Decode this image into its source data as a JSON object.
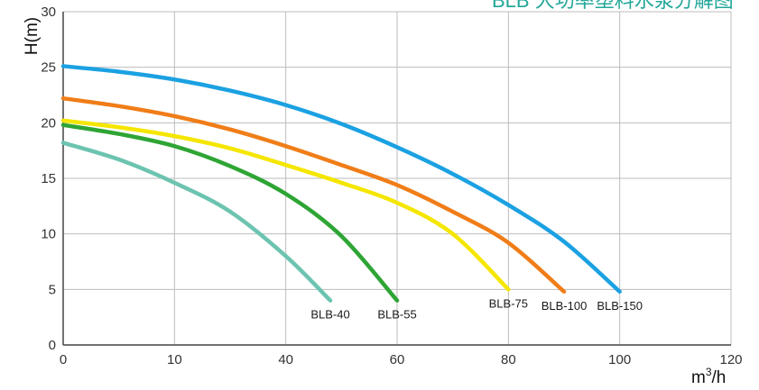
{
  "chart_data": {
    "type": "line",
    "title": "BLB 大功率塑料水泵分解图",
    "xlabel": "m³/h",
    "xlabel_base": "m",
    "xlabel_sup": "3",
    "xlabel_tail": "/h",
    "ylabel": "H(m)",
    "xlim": [
      0,
      120
    ],
    "ylim": [
      0,
      30
    ],
    "xticks": [
      "0",
      "10",
      "40",
      "60",
      "80",
      "100",
      "120"
    ],
    "yticks": [
      "0",
      "5",
      "10",
      "15",
      "20",
      "25",
      "30"
    ],
    "grid": true,
    "legend": "labels at curve ends",
    "series": [
      {
        "name": "BLB-150",
        "color": "#1ba1e2",
        "x": [
          0,
          10,
          20,
          30,
          40,
          50,
          60,
          70,
          80,
          90,
          100
        ],
        "y": [
          25.1,
          24.6,
          23.9,
          22.9,
          21.6,
          19.9,
          17.8,
          15.4,
          12.6,
          9.3,
          4.8
        ]
      },
      {
        "name": "BLB-100",
        "color": "#f07d18",
        "x": [
          0,
          10,
          20,
          30,
          40,
          50,
          60,
          70,
          80,
          90
        ],
        "y": [
          22.2,
          21.5,
          20.6,
          19.4,
          17.9,
          16.2,
          14.4,
          12.0,
          9.2,
          4.8
        ]
      },
      {
        "name": "BLB-75",
        "color": "#f5e600",
        "x": [
          0,
          10,
          20,
          30,
          40,
          50,
          60,
          70,
          80
        ],
        "y": [
          20.2,
          19.6,
          18.8,
          17.7,
          16.2,
          14.6,
          12.8,
          10.0,
          5.0
        ]
      },
      {
        "name": "BLB-55",
        "color": "#2ea534",
        "x": [
          0,
          10,
          20,
          30,
          40,
          50,
          60
        ],
        "y": [
          19.8,
          19.0,
          17.9,
          16.1,
          13.6,
          9.8,
          4.0
        ]
      },
      {
        "name": "BLB-40",
        "color": "#6cc4b0",
        "x": [
          0,
          10,
          20,
          30,
          40,
          48
        ],
        "y": [
          18.2,
          16.7,
          14.6,
          12.0,
          8.0,
          4.0
        ]
      }
    ],
    "colors": {
      "grid": "#bdbdbd",
      "axis": "#444444",
      "title": "#23a79a"
    }
  }
}
